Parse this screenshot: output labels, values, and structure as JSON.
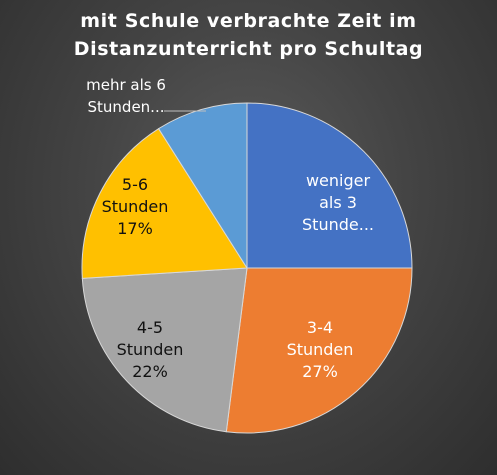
{
  "chart_data": {
    "type": "pie",
    "title": [
      "mit Schule verbrachte Zeit im",
      "Distanzunterricht pro Schultag"
    ],
    "slices": [
      {
        "label": "weniger als 3 Stunde...",
        "value": 25,
        "value_label": "",
        "color": "#4472C4",
        "label_color": "#ffffff"
      },
      {
        "label": "3-4 Stunden",
        "value": 27,
        "value_label": "27%",
        "color": "#ED7D31",
        "label_color": "#ffffff"
      },
      {
        "label": "4-5 Stunden",
        "value": 22,
        "value_label": "22%",
        "color": "#A5A5A5",
        "label_color": "#111111"
      },
      {
        "label": "5-6 Stunden",
        "value": 17,
        "value_label": "17%",
        "color": "#FFC000",
        "label_color": "#111111"
      },
      {
        "label": "mehr als 6 Stunden...",
        "value": 9,
        "value_label": "",
        "color": "#5B9BD5",
        "label_color": "#ffffff"
      }
    ]
  }
}
